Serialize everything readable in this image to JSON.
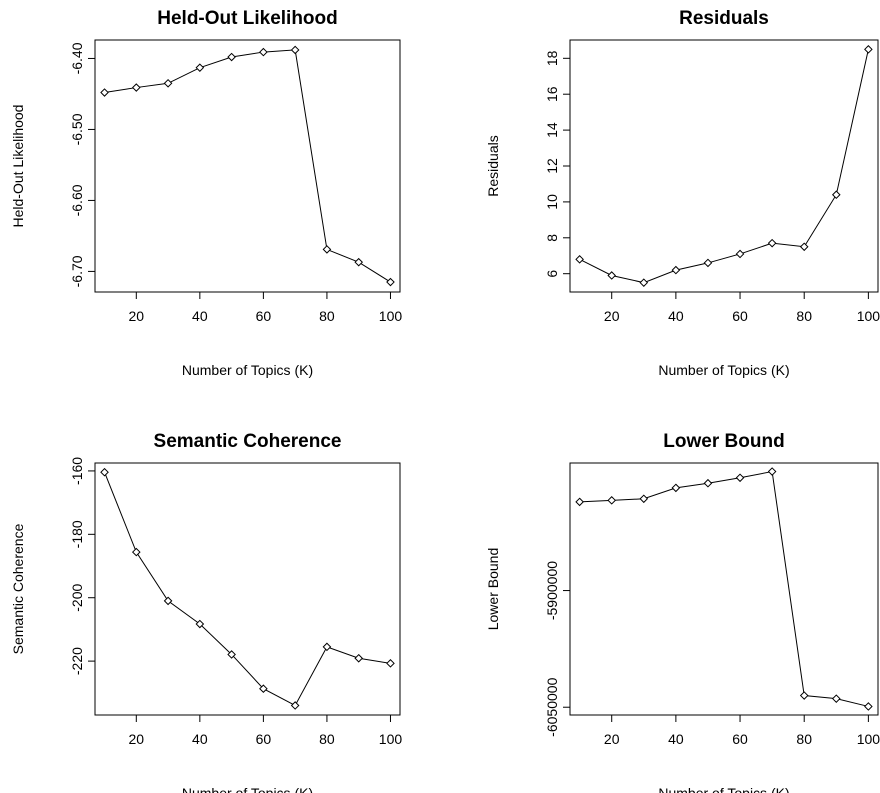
{
  "chart_data": [
    {
      "type": "line",
      "title": "Held-Out Likelihood",
      "xlabel": "Number of Topics (K)",
      "ylabel": "Held-Out Likelihood",
      "x": [
        10,
        20,
        30,
        40,
        50,
        60,
        70,
        80,
        90,
        100
      ],
      "y": [
        -6.448,
        -6.441,
        -6.435,
        -6.413,
        -6.398,
        -6.391,
        -6.388,
        -6.669,
        -6.687,
        -6.715
      ],
      "xlim": [
        7,
        103
      ],
      "ylim": [
        -6.729,
        -6.374
      ],
      "xticks": [
        20,
        40,
        60,
        80,
        100
      ],
      "xtick_labels": [
        "20",
        "40",
        "60",
        "80",
        "100"
      ],
      "yticks": [
        -6.4,
        -6.5,
        -6.6,
        -6.7
      ],
      "ytick_labels": [
        "-6.40",
        "-6.50",
        "-6.60",
        "-6.70"
      ],
      "grid": false
    },
    {
      "type": "line",
      "title": "Residuals",
      "xlabel": "Number of Topics (K)",
      "ylabel": "Residuals",
      "x": [
        10,
        20,
        30,
        40,
        50,
        60,
        70,
        80,
        90,
        100
      ],
      "y": [
        6.8,
        5.9,
        5.5,
        6.2,
        6.6,
        7.1,
        7.7,
        7.5,
        10.4,
        18.5
      ],
      "xlim": [
        7,
        103
      ],
      "ylim": [
        4.98,
        19.02
      ],
      "xticks": [
        20,
        40,
        60,
        80,
        100
      ],
      "xtick_labels": [
        "20",
        "40",
        "60",
        "80",
        "100"
      ],
      "yticks": [
        6,
        8,
        10,
        12,
        14,
        16,
        18
      ],
      "ytick_labels": [
        "6",
        "8",
        "10",
        "12",
        "14",
        "16",
        "18"
      ],
      "grid": false
    },
    {
      "type": "line",
      "title": "Semantic Coherence",
      "xlabel": "Number of Topics (K)",
      "ylabel": "Semantic Coherence",
      "x": [
        10,
        20,
        30,
        40,
        50,
        60,
        70,
        80,
        90,
        100
      ],
      "y": [
        -160.4,
        -185.6,
        -201.0,
        -208.3,
        -217.9,
        -228.7,
        -234.0,
        -215.5,
        -219.1,
        -220.7
      ],
      "xlim": [
        7,
        103
      ],
      "ylim": [
        -237.0,
        -157.5
      ],
      "xticks": [
        20,
        40,
        60,
        80,
        100
      ],
      "xtick_labels": [
        "20",
        "40",
        "60",
        "80",
        "100"
      ],
      "yticks": [
        -160,
        -180,
        -200,
        -220
      ],
      "ytick_labels": [
        "-160",
        "-180",
        "-200",
        "-220"
      ],
      "grid": false
    },
    {
      "type": "line",
      "title": "Lower Bound",
      "xlabel": "Number of Topics (K)",
      "ylabel": "Lower Bound",
      "x": [
        10,
        20,
        30,
        40,
        50,
        60,
        70,
        80,
        90,
        100
      ],
      "y": [
        -5786000,
        -5784000,
        -5782000,
        -5768000,
        -5762000,
        -5755000,
        -5747000,
        -6035000,
        -6039000,
        -6049000
      ],
      "xlim": [
        7,
        103
      ],
      "ylim": [
        -6060000,
        -5736000
      ],
      "xticks": [
        20,
        40,
        60,
        80,
        100
      ],
      "xtick_labels": [
        "20",
        "40",
        "60",
        "80",
        "100"
      ],
      "yticks": [
        -5900000,
        -6050000
      ],
      "ytick_labels": [
        "-5900000",
        "-6050000"
      ],
      "grid": false
    }
  ]
}
